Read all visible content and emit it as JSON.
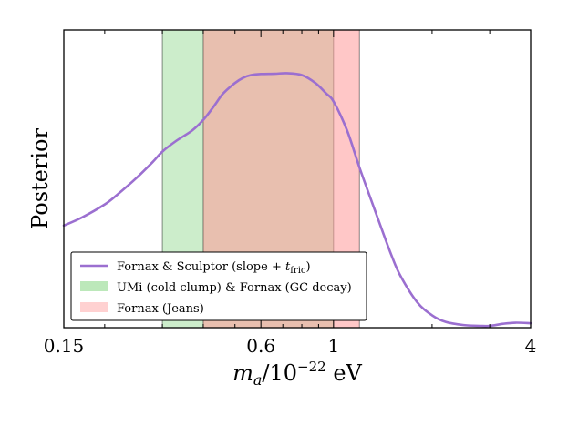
{
  "chart_data": {
    "type": "line",
    "title": "",
    "xlabel": "m_a/10^-22 eV",
    "ylabel": "Posterior",
    "xscale": "log",
    "xlim": [
      0.15,
      4
    ],
    "ylim": [
      0,
      1
    ],
    "xticks": [
      {
        "value": 0.15,
        "label": "0.15"
      },
      {
        "value": 0.6,
        "label": "0.6"
      },
      {
        "value": 1,
        "label": "1"
      },
      {
        "value": 4,
        "label": "4"
      }
    ],
    "grid": false,
    "legend_position": "lower-left",
    "bands": [
      {
        "name": "UMi (cold clump) & Fornax (GC decay)",
        "x": [
          0.3,
          1.0
        ],
        "color": "#8fd88c",
        "opacity": 0.45
      },
      {
        "name": "Fornax (Jeans)",
        "x": [
          0.4,
          1.2
        ],
        "color": "#ff9999",
        "opacity": 0.55
      }
    ],
    "series": [
      {
        "name": "Fornax & Sculptor (slope + t_fric)",
        "color": "#9b6fd0",
        "x": [
          0.15,
          0.17,
          0.2,
          0.22,
          0.25,
          0.28,
          0.3,
          0.33,
          0.37,
          0.4,
          0.43,
          0.46,
          0.5,
          0.53,
          0.56,
          0.6,
          0.66,
          0.72,
          0.8,
          0.88,
          0.95,
          1.0,
          1.1,
          1.2,
          1.3,
          1.4,
          1.5,
          1.6,
          1.8,
          2.0,
          2.2,
          2.5,
          2.8,
          3.0,
          3.3,
          3.6,
          4.0
        ],
        "y": [
          0.38,
          0.41,
          0.46,
          0.5,
          0.56,
          0.62,
          0.66,
          0.7,
          0.74,
          0.78,
          0.83,
          0.88,
          0.92,
          0.94,
          0.95,
          0.954,
          0.955,
          0.957,
          0.95,
          0.92,
          0.88,
          0.85,
          0.74,
          0.6,
          0.48,
          0.37,
          0.27,
          0.19,
          0.09,
          0.04,
          0.015,
          0.003,
          0.0,
          0.0,
          0.008,
          0.012,
          0.01
        ]
      }
    ],
    "legend": {
      "entries": [
        {
          "kind": "line",
          "label": "Fornax & Sculptor (slope + t_fric)",
          "color": "#9b6fd0"
        },
        {
          "kind": "patch",
          "label": "UMi (cold clump) & Fornax (GC decay)",
          "color": "#8fd88c"
        },
        {
          "kind": "patch",
          "label": "Fornax (Jeans)",
          "color": "#ffb3b3"
        }
      ]
    }
  }
}
